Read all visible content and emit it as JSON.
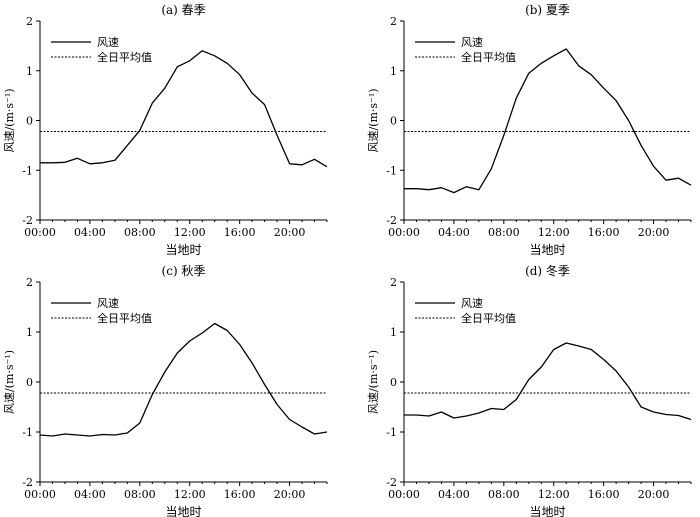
{
  "chart_data": [
    {
      "type": "line",
      "title": "(a) 春季",
      "xlabel": "当地时",
      "ylabel": "风速/(m·s⁻¹)",
      "xlim": [
        0,
        23
      ],
      "ylim": [
        -2,
        2
      ],
      "xticks": [
        0,
        4,
        8,
        12,
        16,
        20
      ],
      "xtick_labels": [
        "00:00",
        "04:00",
        "08:00",
        "12:00",
        "16:00",
        "20:00"
      ],
      "yticks": [
        -2,
        -1,
        0,
        1,
        2
      ],
      "ytick_labels": [
        "-2",
        "-1",
        "0",
        "1",
        "2"
      ],
      "legend_position": "top-left",
      "x": [
        0,
        1,
        2,
        3,
        4,
        5,
        6,
        7,
        8,
        9,
        10,
        11,
        12,
        13,
        14,
        15,
        16,
        17,
        18,
        19,
        20,
        21,
        22,
        23
      ],
      "series": [
        {
          "name": "风速",
          "style": "solid",
          "values": [
            -0.85,
            -0.85,
            -0.84,
            -0.76,
            -0.87,
            -0.85,
            -0.8,
            -0.5,
            -0.2,
            0.35,
            0.65,
            1.08,
            1.2,
            1.4,
            1.3,
            1.15,
            0.92,
            0.55,
            0.32,
            -0.3,
            -0.87,
            -0.89,
            -0.78,
            -0.93
          ]
        },
        {
          "name": "全日平均值",
          "style": "dotted",
          "constant": -0.22
        }
      ]
    },
    {
      "type": "line",
      "title": "(b) 夏季",
      "xlabel": "当地时",
      "ylabel": "风速/(m·s⁻¹)",
      "xlim": [
        0,
        23
      ],
      "ylim": [
        -2,
        2
      ],
      "xticks": [
        0,
        4,
        8,
        12,
        16,
        20
      ],
      "xtick_labels": [
        "00:00",
        "04:00",
        "08:00",
        "12:00",
        "16:00",
        "20:00"
      ],
      "yticks": [
        -2,
        -1,
        0,
        1,
        2
      ],
      "ytick_labels": [
        "-2",
        "-1",
        "0",
        "1",
        "2"
      ],
      "legend_position": "top-left",
      "x": [
        0,
        1,
        2,
        3,
        4,
        5,
        6,
        7,
        8,
        9,
        10,
        11,
        12,
        13,
        14,
        15,
        16,
        17,
        18,
        19,
        20,
        21,
        22,
        23
      ],
      "series": [
        {
          "name": "风速",
          "style": "solid",
          "values": [
            -1.37,
            -1.37,
            -1.39,
            -1.35,
            -1.45,
            -1.33,
            -1.39,
            -0.97,
            -0.3,
            0.45,
            0.95,
            1.15,
            1.3,
            1.44,
            1.1,
            0.92,
            0.65,
            0.4,
            0.0,
            -0.5,
            -0.92,
            -1.2,
            -1.16,
            -1.3
          ]
        },
        {
          "name": "全日平均值",
          "style": "dotted",
          "constant": -0.22
        }
      ]
    },
    {
      "type": "line",
      "title": "(c) 秋季",
      "xlabel": "当地时",
      "ylabel": "风速/(m·s⁻¹)",
      "xlim": [
        0,
        23
      ],
      "ylim": [
        -2,
        2
      ],
      "xticks": [
        0,
        4,
        8,
        12,
        16,
        20
      ],
      "xtick_labels": [
        "00:00",
        "04:00",
        "08:00",
        "12:00",
        "16:00",
        "20:00"
      ],
      "yticks": [
        -2,
        -1,
        0,
        1,
        2
      ],
      "ytick_labels": [
        "-2",
        "-1",
        "0",
        "1",
        "2"
      ],
      "legend_position": "top-left",
      "x": [
        0,
        1,
        2,
        3,
        4,
        5,
        6,
        7,
        8,
        9,
        10,
        11,
        12,
        13,
        14,
        15,
        16,
        17,
        18,
        19,
        20,
        21,
        22,
        23
      ],
      "series": [
        {
          "name": "风速",
          "style": "solid",
          "values": [
            -1.06,
            -1.08,
            -1.04,
            -1.06,
            -1.08,
            -1.05,
            -1.06,
            -1.02,
            -0.82,
            -0.25,
            0.2,
            0.58,
            0.82,
            0.98,
            1.17,
            1.03,
            0.75,
            0.38,
            -0.05,
            -0.45,
            -0.75,
            -0.9,
            -1.04,
            -1.0
          ]
        },
        {
          "name": "全日平均值",
          "style": "dotted",
          "constant": -0.22
        }
      ]
    },
    {
      "type": "line",
      "title": "(d) 冬季",
      "xlabel": "当地时",
      "ylabel": "风速/(m·s⁻¹)",
      "xlim": [
        0,
        23
      ],
      "ylim": [
        -2,
        2
      ],
      "xticks": [
        0,
        4,
        8,
        12,
        16,
        20
      ],
      "xtick_labels": [
        "00:00",
        "04:00",
        "08:00",
        "12:00",
        "16:00",
        "20:00"
      ],
      "yticks": [
        -2,
        -1,
        0,
        1,
        2
      ],
      "ytick_labels": [
        "-2",
        "-1",
        "0",
        "1",
        "2"
      ],
      "legend_position": "top-left",
      "x": [
        0,
        1,
        2,
        3,
        4,
        5,
        6,
        7,
        8,
        9,
        10,
        11,
        12,
        13,
        14,
        15,
        16,
        17,
        18,
        19,
        20,
        21,
        22,
        23
      ],
      "series": [
        {
          "name": "风速",
          "style": "solid",
          "values": [
            -0.66,
            -0.66,
            -0.68,
            -0.6,
            -0.72,
            -0.68,
            -0.62,
            -0.53,
            -0.55,
            -0.35,
            0.05,
            0.3,
            0.65,
            0.78,
            0.72,
            0.65,
            0.45,
            0.22,
            -0.1,
            -0.5,
            -0.6,
            -0.65,
            -0.67,
            -0.75
          ]
        },
        {
          "name": "全日平均值",
          "style": "dotted",
          "constant": -0.22
        }
      ]
    }
  ]
}
